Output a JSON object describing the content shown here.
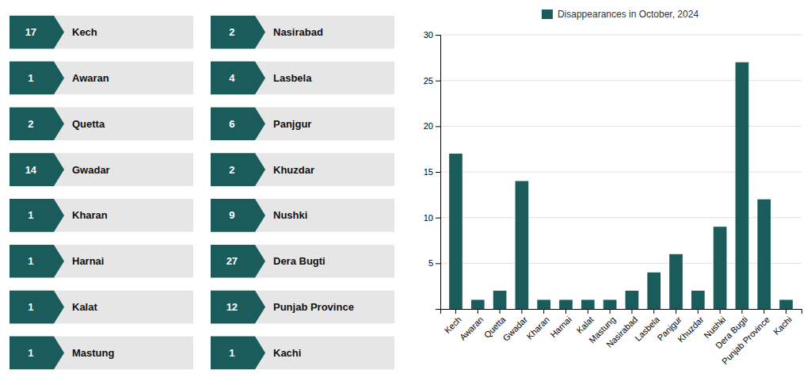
{
  "chart_data": [
    {
      "type": "badges",
      "categories": [
        "Kech",
        "Awaran",
        "Quetta",
        "Gwadar",
        "Kharan",
        "Harnai",
        "Kalat",
        "Mastung"
      ],
      "values": [
        17,
        1,
        2,
        14,
        1,
        1,
        1,
        1
      ],
      "color": "#1a5c5c"
    },
    {
      "type": "badges",
      "categories": [
        "Nasirabad",
        "Lasbela",
        "Panjgur",
        "Khuzdar",
        "Nushki",
        "Dera Bugti",
        "Punjab Province",
        "Kachi"
      ],
      "values": [
        2,
        4,
        6,
        2,
        9,
        27,
        12,
        1
      ],
      "color": "#1a5c5c"
    },
    {
      "type": "bar",
      "categories": [
        "Kech",
        "Awaran",
        "Quetta",
        "Gwadar",
        "Kharan",
        "Harnai",
        "Kalat",
        "Mastung",
        "Nasirabad",
        "Lasbela",
        "Panjgur",
        "Khuzdar",
        "Nushki",
        "Dera Bugti",
        "Punjab Province",
        "Kachi"
      ],
      "series": [
        {
          "name": "Disappearances in October, 2024",
          "color": "#1a5c5c",
          "values": [
            17,
            1,
            2,
            14,
            1,
            1,
            1,
            1,
            2,
            4,
            6,
            2,
            9,
            27,
            12,
            1
          ]
        }
      ],
      "ylim": [
        0,
        30
      ],
      "yticks": [
        5,
        10,
        15,
        20,
        25,
        30
      ],
      "grid": true,
      "legend": "top"
    }
  ]
}
